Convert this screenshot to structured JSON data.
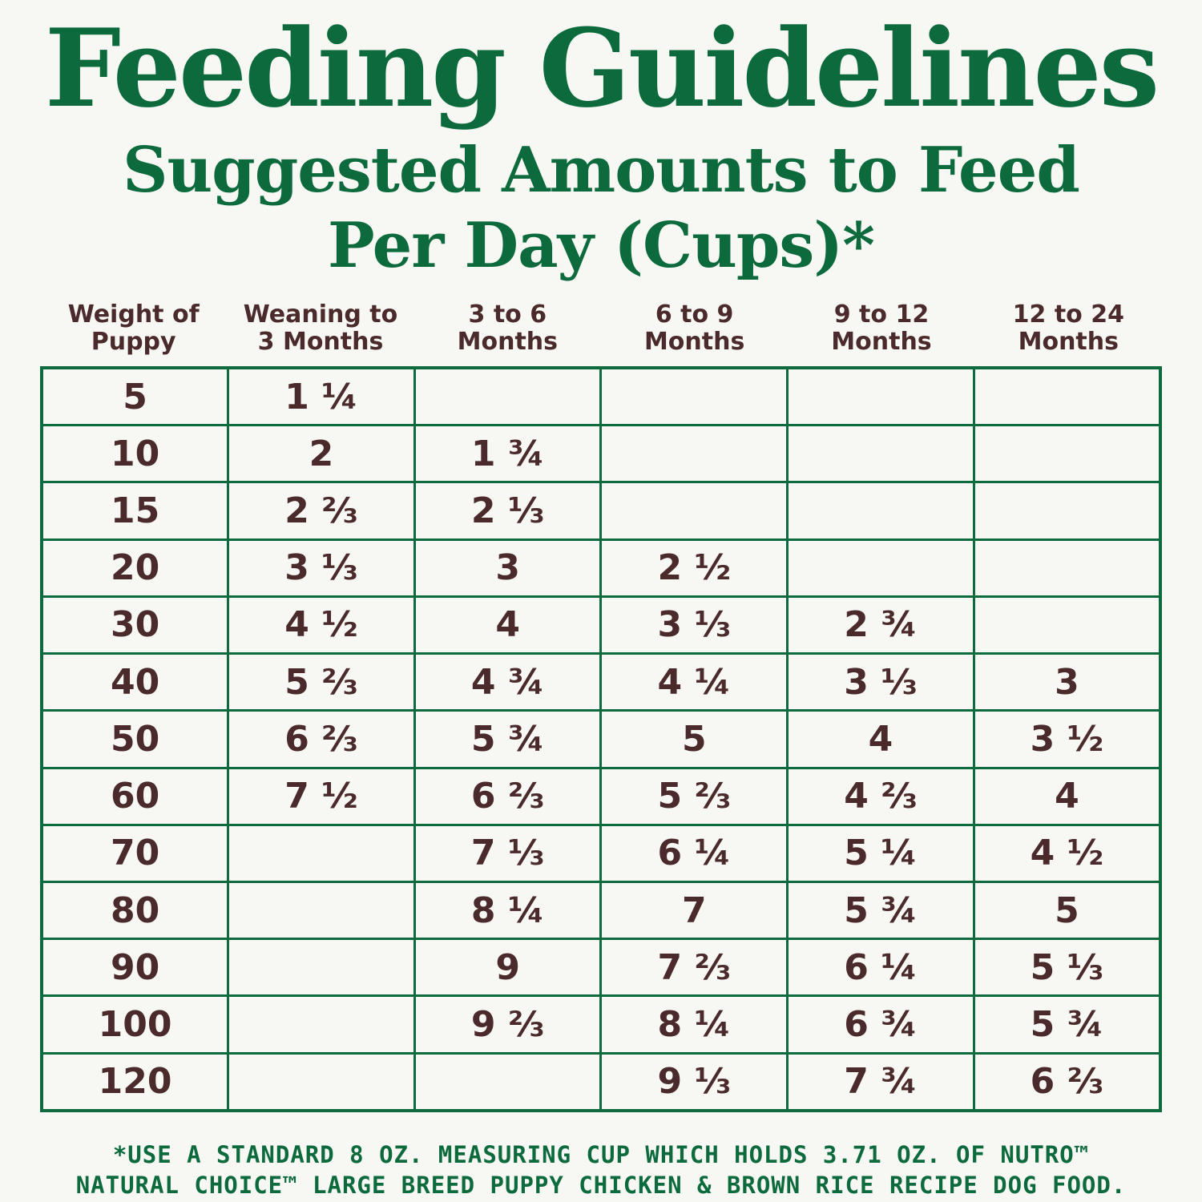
{
  "title": "Feeding Guidelines",
  "subtitle_line1": "Suggested Amounts to Feed",
  "subtitle_line2": "Per Day (Cups)*",
  "table": {
    "headers": [
      "Weight of\nPuppy",
      "Weaning to\n3 Months",
      "3 to 6\nMonths",
      "6 to 9\nMonths",
      "9 to 12\nMonths",
      "12 to 24\nMonths"
    ],
    "rows": [
      [
        "5",
        "1 ¼",
        "",
        "",
        "",
        ""
      ],
      [
        "10",
        "2",
        "1 ¾",
        "",
        "",
        ""
      ],
      [
        "15",
        "2 ⅔",
        "2 ⅓",
        "",
        "",
        ""
      ],
      [
        "20",
        "3 ⅓",
        "3",
        "2 ½",
        "",
        ""
      ],
      [
        "30",
        "4 ½",
        "4",
        "3 ⅓",
        "2 ¾",
        ""
      ],
      [
        "40",
        "5 ⅔",
        "4 ¾",
        "4 ¼",
        "3 ⅓",
        "3"
      ],
      [
        "50",
        "6 ⅔",
        "5 ¾",
        "5",
        "4",
        "3 ½"
      ],
      [
        "60",
        "7 ½",
        "6 ⅔",
        "5 ⅔",
        "4 ⅔",
        "4"
      ],
      [
        "70",
        "",
        "7 ⅓",
        "6 ¼",
        "5 ¼",
        "4 ½"
      ],
      [
        "80",
        "",
        "8 ¼",
        "7",
        "5 ¾",
        "5"
      ],
      [
        "90",
        "",
        "9",
        "7 ⅔",
        "6 ¼",
        "5 ⅓"
      ],
      [
        "100",
        "",
        "9 ⅔",
        "8 ¼",
        "6 ¾",
        "5 ¾"
      ],
      [
        "120",
        "",
        "",
        "9 ⅓",
        "7 ¾",
        "6 ⅔"
      ]
    ]
  },
  "footnote_line1": "*USE A STANDARD 8 OZ. MEASURING CUP WHICH HOLDS 3.71 OZ. OF NUTRO™",
  "footnote_line2": "NATURAL CHOICE™ LARGE BREED PUPPY CHICKEN & BROWN RICE RECIPE DOG FOOD."
}
